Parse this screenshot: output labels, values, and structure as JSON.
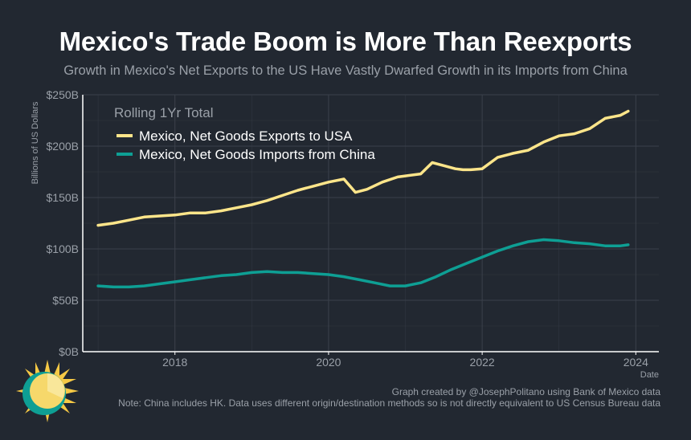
{
  "title": "Mexico's Trade Boom is More Than Reexports",
  "subtitle": "Growth in Mexico's Net Exports to the US Have Vastly Dwarfed Growth in its Imports from China",
  "credit_line1": "Graph created by @JosephPolitano using Bank of Mexico data",
  "credit_line2": "Note: China includes HK. Data uses different origin/destination methods so is not directly equivalent to US Census Bureau data",
  "colors": {
    "background": "#222831",
    "exports": "#fde58a",
    "imports": "#0e9f94",
    "text": "#9aa0a8",
    "grid": "#3b414b"
  },
  "logo_icon": "sun-icon",
  "chart_data": {
    "type": "line",
    "legend_title": "Rolling 1Yr Total",
    "legend_position": "top-left",
    "xlabel": "Date",
    "ylabel": "Billions of US Dollars",
    "xlim": [
      2016.8,
      2024.3
    ],
    "ylim": [
      0,
      250
    ],
    "x_ticks": [
      2018,
      2020,
      2022,
      2024
    ],
    "x_tick_labels": [
      "2018",
      "2020",
      "2022",
      "2024"
    ],
    "y_ticks": [
      0,
      50,
      100,
      150,
      200,
      250
    ],
    "y_tick_labels": [
      "$0B",
      "$50B",
      "$100B",
      "$150B",
      "$200B",
      "$250B"
    ],
    "series": [
      {
        "name": "Mexico, Net Goods Exports to USA",
        "color": "#fde58a",
        "x": [
          2017.0,
          2017.2,
          2017.4,
          2017.6,
          2017.8,
          2018.0,
          2018.2,
          2018.4,
          2018.6,
          2018.8,
          2019.0,
          2019.2,
          2019.4,
          2019.6,
          2019.8,
          2020.0,
          2020.2,
          2020.35,
          2020.5,
          2020.7,
          2020.9,
          2021.0,
          2021.2,
          2021.35,
          2021.5,
          2021.65,
          2021.75,
          2021.85,
          2022.0,
          2022.2,
          2022.4,
          2022.6,
          2022.8,
          2023.0,
          2023.2,
          2023.4,
          2023.6,
          2023.8,
          2023.9
        ],
        "values": [
          123,
          125,
          128,
          131,
          132,
          133,
          135,
          135,
          137,
          140,
          143,
          147,
          152,
          157,
          161,
          165,
          168,
          155,
          158,
          165,
          170,
          171,
          173,
          184,
          181,
          178,
          177,
          177,
          178,
          189,
          193,
          196,
          204,
          210,
          212,
          217,
          227,
          230,
          234
        ]
      },
      {
        "name": "Mexico, Net Goods Imports from China",
        "color": "#0e9f94",
        "x": [
          2017.0,
          2017.2,
          2017.4,
          2017.6,
          2017.8,
          2018.0,
          2018.2,
          2018.4,
          2018.6,
          2018.8,
          2019.0,
          2019.2,
          2019.4,
          2019.6,
          2019.8,
          2020.0,
          2020.2,
          2020.4,
          2020.6,
          2020.8,
          2021.0,
          2021.2,
          2021.4,
          2021.6,
          2021.8,
          2022.0,
          2022.2,
          2022.4,
          2022.6,
          2022.8,
          2023.0,
          2023.2,
          2023.4,
          2023.6,
          2023.8,
          2023.9
        ],
        "values": [
          64,
          63,
          63,
          64,
          66,
          68,
          70,
          72,
          74,
          75,
          77,
          78,
          77,
          77,
          76,
          75,
          73,
          70,
          67,
          64,
          64,
          67,
          73,
          80,
          86,
          92,
          98,
          103,
          107,
          109,
          108,
          106,
          105,
          103,
          103,
          104
        ]
      }
    ]
  }
}
